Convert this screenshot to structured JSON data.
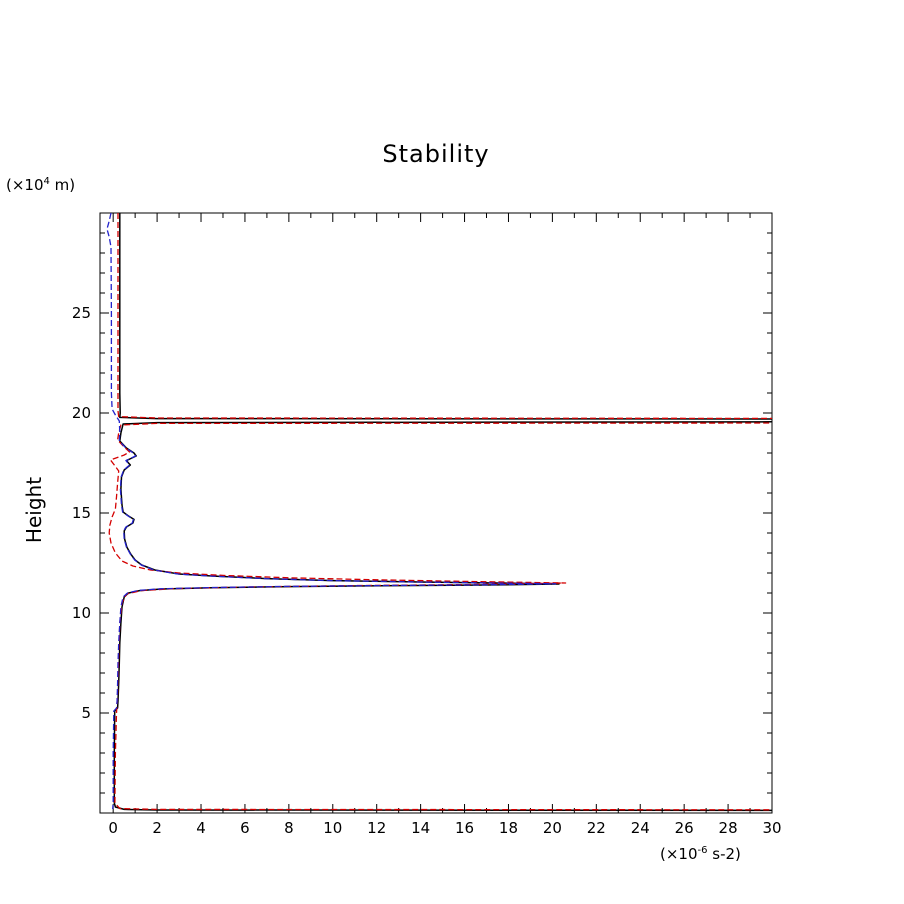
{
  "chart": {
    "title": "Stability",
    "ylabel": "Height",
    "y_unit": {
      "prefix": "(×10",
      "sup": "4",
      "suffix": " m)"
    },
    "x_unit": {
      "prefix": "(×10",
      "sup": "-6",
      "suffix": " s-2)"
    }
  },
  "chart_data": {
    "type": "line",
    "title": "Stability",
    "xlabel": "(×10-6 s-2)",
    "ylabel": "Height (×10^4 m)",
    "xlim": [
      -0.6,
      30
    ],
    "ylim": [
      0,
      30
    ],
    "grid": false,
    "legend": "none",
    "x_major_ticks": [
      0,
      2,
      4,
      6,
      8,
      10,
      12,
      14,
      16,
      18,
      20,
      22,
      24,
      26,
      28,
      30
    ],
    "x_tick_minor_step": 1,
    "y_major_ticks": [
      5,
      10,
      15,
      20,
      25
    ],
    "y_tick_minor_step": 1,
    "series": [
      {
        "name": "stability-solid-black",
        "color": "#000000",
        "dash": "none",
        "width": 1.5,
        "points": [
          [
            0.3,
            30
          ],
          [
            0.3,
            21
          ],
          [
            0.32,
            20.0
          ],
          [
            0.3,
            19.78
          ],
          [
            2,
            19.72
          ],
          [
            30.4,
            19.7
          ],
          [
            30.4,
            19.56
          ],
          [
            2,
            19.52
          ],
          [
            0.45,
            19.45
          ],
          [
            0.35,
            19.0
          ],
          [
            0.3,
            18.6
          ],
          [
            0.6,
            18.25
          ],
          [
            0.95,
            18.0
          ],
          [
            1.05,
            17.85
          ],
          [
            0.6,
            17.62
          ],
          [
            0.78,
            17.4
          ],
          [
            0.5,
            17.15
          ],
          [
            0.38,
            16.8
          ],
          [
            0.35,
            16.2
          ],
          [
            0.4,
            15.4
          ],
          [
            0.45,
            15.05
          ],
          [
            0.7,
            14.85
          ],
          [
            0.95,
            14.68
          ],
          [
            0.9,
            14.5
          ],
          [
            0.6,
            14.3
          ],
          [
            0.5,
            14.1
          ],
          [
            0.52,
            13.7
          ],
          [
            0.62,
            13.3
          ],
          [
            0.8,
            12.95
          ],
          [
            1.0,
            12.65
          ],
          [
            1.3,
            12.4
          ],
          [
            1.9,
            12.15
          ],
          [
            3.0,
            11.95
          ],
          [
            4.5,
            11.85
          ],
          [
            7,
            11.72
          ],
          [
            10,
            11.62
          ],
          [
            14,
            11.55
          ],
          [
            17.5,
            11.5
          ],
          [
            20.3,
            11.45
          ],
          [
            17,
            11.4
          ],
          [
            13,
            11.37
          ],
          [
            8,
            11.32
          ],
          [
            4.5,
            11.26
          ],
          [
            2.2,
            11.2
          ],
          [
            1.2,
            11.12
          ],
          [
            0.7,
            11.0
          ],
          [
            0.5,
            10.8
          ],
          [
            0.4,
            10.3
          ],
          [
            0.35,
            9.5
          ],
          [
            0.3,
            8.5
          ],
          [
            0.28,
            7.5
          ],
          [
            0.25,
            6.5
          ],
          [
            0.22,
            5.6
          ],
          [
            0.2,
            5.25
          ],
          [
            0.07,
            5.1
          ],
          [
            0.05,
            3
          ],
          [
            0.05,
            0.5
          ],
          [
            0.1,
            0.3
          ],
          [
            0.5,
            0.18
          ],
          [
            2,
            0.15
          ],
          [
            30.4,
            0.13
          ]
        ]
      },
      {
        "name": "stability-dashed-red",
        "color": "#d40000",
        "dash": "6,3",
        "width": 1.3,
        "points": [
          [
            0.22,
            30
          ],
          [
            0.22,
            20.1
          ],
          [
            0.25,
            19.82
          ],
          [
            2,
            19.75
          ],
          [
            30.4,
            19.73
          ],
          [
            30.4,
            19.5
          ],
          [
            2,
            19.48
          ],
          [
            0.35,
            19.4
          ],
          [
            0.25,
            19.0
          ],
          [
            0.2,
            18.65
          ],
          [
            0.5,
            18.3
          ],
          [
            0.75,
            18.05
          ],
          [
            0.5,
            17.9
          ],
          [
            -0.12,
            17.65
          ],
          [
            0.05,
            17.4
          ],
          [
            0.25,
            17.1
          ],
          [
            0.2,
            16.5
          ],
          [
            0.15,
            15.8
          ],
          [
            0.1,
            15.2
          ],
          [
            -0.05,
            14.8
          ],
          [
            -0.15,
            14.4
          ],
          [
            -0.18,
            14.0
          ],
          [
            -0.1,
            13.5
          ],
          [
            0.1,
            13.0
          ],
          [
            0.4,
            12.6
          ],
          [
            0.9,
            12.35
          ],
          [
            1.7,
            12.15
          ],
          [
            3.0,
            12.0
          ],
          [
            5,
            11.88
          ],
          [
            8,
            11.76
          ],
          [
            12,
            11.66
          ],
          [
            16,
            11.58
          ],
          [
            20.6,
            11.5
          ],
          [
            16,
            11.42
          ],
          [
            11,
            11.37
          ],
          [
            6,
            11.3
          ],
          [
            2.8,
            11.22
          ],
          [
            1.3,
            11.12
          ],
          [
            0.6,
            10.95
          ],
          [
            0.4,
            10.5
          ],
          [
            0.3,
            9.5
          ],
          [
            0.25,
            8
          ],
          [
            0.2,
            6
          ],
          [
            0.15,
            5
          ],
          [
            0.1,
            3
          ],
          [
            0.08,
            0.5
          ],
          [
            0.3,
            0.22
          ],
          [
            2,
            0.18
          ],
          [
            30.4,
            0.16
          ]
        ]
      },
      {
        "name": "stability-dashed-blue",
        "color": "#2222cc",
        "dash": "6,3",
        "width": 1.3,
        "points": [
          [
            -0.1,
            30
          ],
          [
            -0.18,
            29.6
          ],
          [
            -0.28,
            29.2
          ],
          [
            -0.18,
            28.8
          ],
          [
            -0.1,
            28.3
          ],
          [
            -0.08,
            25
          ],
          [
            -0.08,
            21
          ],
          [
            -0.05,
            20.2
          ],
          [
            0.1,
            19.9
          ],
          [
            0.28,
            19.6
          ],
          [
            0.3,
            19.0
          ],
          [
            0.28,
            18.6
          ],
          [
            0.58,
            18.25
          ],
          [
            0.92,
            18.0
          ],
          [
            1.02,
            17.85
          ],
          [
            0.58,
            17.62
          ],
          [
            0.75,
            17.4
          ],
          [
            0.48,
            17.15
          ],
          [
            0.36,
            16.8
          ],
          [
            0.33,
            16.2
          ],
          [
            0.38,
            15.4
          ],
          [
            0.43,
            15.05
          ],
          [
            0.68,
            14.85
          ],
          [
            0.92,
            14.68
          ],
          [
            0.87,
            14.5
          ],
          [
            0.58,
            14.3
          ],
          [
            0.48,
            14.1
          ],
          [
            0.5,
            13.7
          ],
          [
            0.6,
            13.3
          ],
          [
            0.78,
            12.95
          ],
          [
            0.98,
            12.65
          ],
          [
            1.28,
            12.4
          ],
          [
            1.85,
            12.15
          ],
          [
            2.95,
            11.95
          ],
          [
            4.4,
            11.85
          ],
          [
            6.9,
            11.72
          ],
          [
            9.9,
            11.62
          ],
          [
            13.9,
            11.55
          ],
          [
            17.4,
            11.5
          ],
          [
            20.15,
            11.46
          ],
          [
            16.9,
            11.41
          ],
          [
            12.9,
            11.38
          ],
          [
            7.9,
            11.33
          ],
          [
            4.4,
            11.27
          ],
          [
            2.15,
            11.21
          ],
          [
            1.15,
            11.13
          ],
          [
            0.65,
            11.0
          ],
          [
            0.45,
            10.8
          ],
          [
            0.35,
            10.3
          ],
          [
            0.3,
            9.5
          ],
          [
            0.25,
            8.5
          ],
          [
            0.22,
            7.5
          ],
          [
            0.2,
            6.5
          ],
          [
            0.18,
            5.6
          ],
          [
            0.15,
            5.25
          ],
          [
            0.03,
            5.1
          ],
          [
            0.0,
            3
          ],
          [
            0.0,
            0.5
          ],
          [
            -0.02,
            0.2
          ]
        ]
      }
    ]
  }
}
